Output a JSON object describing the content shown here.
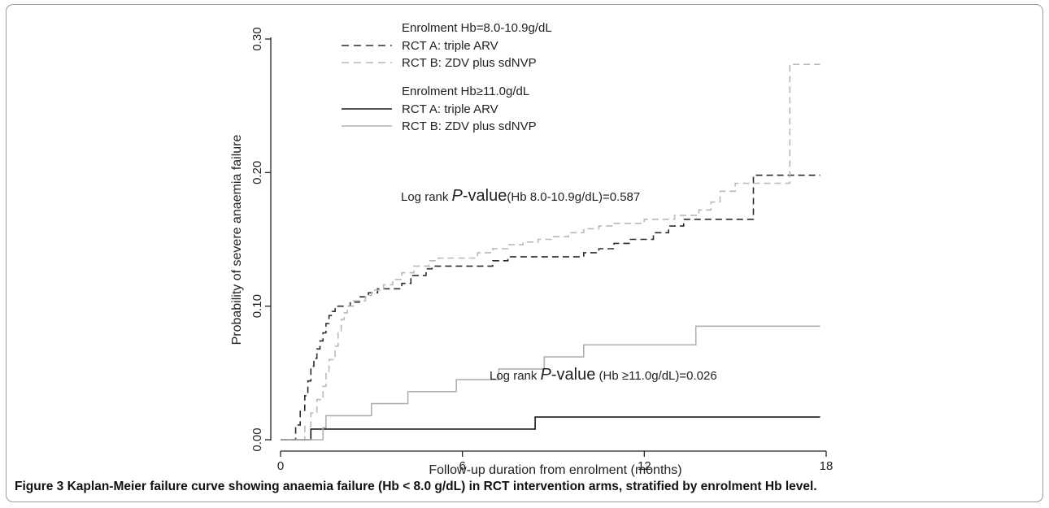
{
  "figure": {
    "caption_label": "Figure 3",
    "caption_text": "Kaplan-Meier failure curve showing anaemia failure (Hb < 8.0 g/dL) in RCT intervention arms, stratified by enrolment Hb level."
  },
  "legend": {
    "group1_title": "Enrolment Hb=8.0-10.9g/dL",
    "group1_items": [
      "RCT A: triple ARV",
      "RCT B: ZDV plus sdNVP"
    ],
    "group2_title": "Enrolment Hb≥11.0g/dL",
    "group2_items": [
      "RCT A: triple ARV",
      "RCT B: ZDV plus sdNVP"
    ]
  },
  "annotations": {
    "logrank1_prefix": "Log rank ",
    "logrank1_p": "P",
    "logrank1_mid": "-value",
    "logrank1_suffix": "(Hb 8.0-10.9g/dL)=0.587",
    "logrank2_prefix": "Log rank ",
    "logrank2_p": "P",
    "logrank2_mid": "-value",
    "logrank2_suffix": " (Hb ≥11.0g/dL)=0.026"
  },
  "chart_data": {
    "type": "line",
    "step": true,
    "xlabel": "Follow-up duration from enrolment (months)",
    "ylabel": "Probability of severe anaemia failure",
    "xlim": [
      0,
      18
    ],
    "ylim": [
      0,
      0.3
    ],
    "xticks": [
      "0",
      "6",
      "12",
      "18"
    ],
    "yticks": [
      "0.00",
      "0.10",
      "0.20",
      "0.30"
    ],
    "xtick_values": [
      0,
      6,
      12,
      18
    ],
    "ytick_values": [
      0,
      0.1,
      0.2,
      0.3
    ],
    "grid": false,
    "legend_position": "top-left",
    "series": [
      {
        "name": "Enrolment Hb=8.0-10.9g/dL RCT A: triple ARV",
        "style": "dashed",
        "color": "#2b2b2b",
        "x": [
          0,
          0.5,
          0.65,
          0.8,
          0.9,
          1.0,
          1.1,
          1.2,
          1.3,
          1.4,
          1.5,
          1.6,
          1.7,
          1.8,
          1.9,
          2.0,
          2.3,
          2.6,
          2.9,
          3.2,
          3.5,
          4.0,
          4.3,
          4.8,
          5.0,
          7.0,
          7.5,
          10.0,
          10.5,
          11.0,
          11.5,
          12.3,
          12.8,
          13.3,
          13.6,
          15.6,
          17.8
        ],
        "y": [
          0,
          0.011,
          0.022,
          0.033,
          0.044,
          0.055,
          0.061,
          0.068,
          0.074,
          0.08,
          0.087,
          0.093,
          0.096,
          0.1,
          0.1,
          0.1,
          0.103,
          0.107,
          0.11,
          0.113,
          0.113,
          0.117,
          0.123,
          0.128,
          0.13,
          0.134,
          0.137,
          0.14,
          0.143,
          0.147,
          0.15,
          0.155,
          0.16,
          0.165,
          0.165,
          0.198,
          0.198
        ]
      },
      {
        "name": "Enrolment Hb=8.0-10.9g/dL RCT B: ZDV plus sdNVP",
        "style": "dashed",
        "color": "#b9b9b9",
        "x": [
          0,
          0.8,
          1.0,
          1.2,
          1.4,
          1.5,
          1.6,
          1.8,
          1.9,
          2.0,
          2.1,
          2.2,
          2.4,
          2.8,
          3.0,
          3.4,
          3.7,
          4.0,
          4.4,
          4.9,
          5.2,
          6.5,
          7.0,
          7.5,
          8.0,
          8.5,
          9.0,
          9.5,
          10.0,
          10.5,
          11.0,
          12.0,
          13.0,
          13.8,
          14.2,
          14.5,
          15.0,
          16.8,
          17.8
        ],
        "y": [
          0,
          0.01,
          0.02,
          0.03,
          0.04,
          0.05,
          0.06,
          0.07,
          0.08,
          0.09,
          0.095,
          0.1,
          0.104,
          0.108,
          0.112,
          0.116,
          0.12,
          0.125,
          0.13,
          0.134,
          0.136,
          0.14,
          0.143,
          0.146,
          0.148,
          0.15,
          0.152,
          0.155,
          0.158,
          0.16,
          0.162,
          0.165,
          0.168,
          0.172,
          0.178,
          0.186,
          0.192,
          0.281,
          0.281
        ]
      },
      {
        "name": "Enrolment Hb≥11.0g/dL RCT A: triple ARV",
        "style": "solid",
        "color": "#1a1a1a",
        "x": [
          0,
          1.0,
          8.4,
          17.8
        ],
        "y": [
          0,
          0.008,
          0.017,
          0.017
        ]
      },
      {
        "name": "Enrolment Hb≥11.0g/dL RCT B: ZDV plus sdNVP",
        "style": "solid",
        "color": "#b0b0b0",
        "x": [
          0,
          1.4,
          1.5,
          3.0,
          4.2,
          5.8,
          7.2,
          8.7,
          10.0,
          13.7,
          17.8
        ],
        "y": [
          0,
          0.009,
          0.018,
          0.027,
          0.036,
          0.045,
          0.053,
          0.062,
          0.071,
          0.085,
          0.085
        ]
      }
    ]
  }
}
